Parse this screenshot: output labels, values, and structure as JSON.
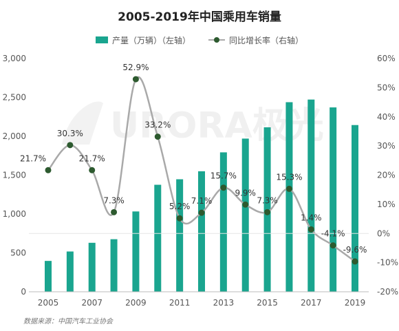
{
  "title": "2005-2019年中国乘用车销量",
  "source": "数据来源：中国汽车工业协会",
  "watermark": "URORA极光",
  "colors": {
    "bar": "#1aa58f",
    "line": "#a9a9a9",
    "marker": "#2d5a2f"
  },
  "chart_data": {
    "type": "bar",
    "categories": [
      "2005",
      "2006",
      "2007",
      "2008",
      "2009",
      "2010",
      "2011",
      "2012",
      "2013",
      "2014",
      "2015",
      "2016",
      "2017",
      "2018",
      "2019"
    ],
    "x_tick_labels": [
      "2005",
      "2007",
      "2009",
      "2011",
      "2013",
      "2015",
      "2017",
      "2019"
    ],
    "series": [
      {
        "name": "产量（万辆）（左轴）",
        "axis": "left",
        "type": "bar",
        "values": [
          397,
          518,
          630,
          676,
          1033,
          1376,
          1447,
          1550,
          1793,
          1970,
          2115,
          2438,
          2472,
          2371,
          2144
        ]
      },
      {
        "name": "同比增长率（右轴）",
        "axis": "right",
        "type": "line",
        "values": [
          21.7,
          30.3,
          21.7,
          7.3,
          52.9,
          33.2,
          5.2,
          7.1,
          15.7,
          9.9,
          7.3,
          15.3,
          1.4,
          -4.1,
          -9.6
        ],
        "labels": [
          "21.7%",
          "30.3%",
          "21.7%",
          "7.3%",
          "52.9%",
          "33.2%",
          "5.2%",
          "7.1%",
          "15.7%",
          "9.9%",
          "7.3%",
          "15.3%",
          "1.4%",
          "-4.1%",
          "-9.6%"
        ]
      }
    ],
    "y_left": {
      "min": 0,
      "max": 3000,
      "ticks": [
        "0",
        "500",
        "1,000",
        "1,500",
        "2,000",
        "2,500",
        "3,000"
      ]
    },
    "y_right": {
      "min": -20,
      "max": 60,
      "ticks": [
        "-20%",
        "-10%",
        "0%",
        "10%",
        "20%",
        "30%",
        "40%",
        "50%",
        "60%"
      ]
    },
    "legend_position": "top-center",
    "grid": false
  }
}
